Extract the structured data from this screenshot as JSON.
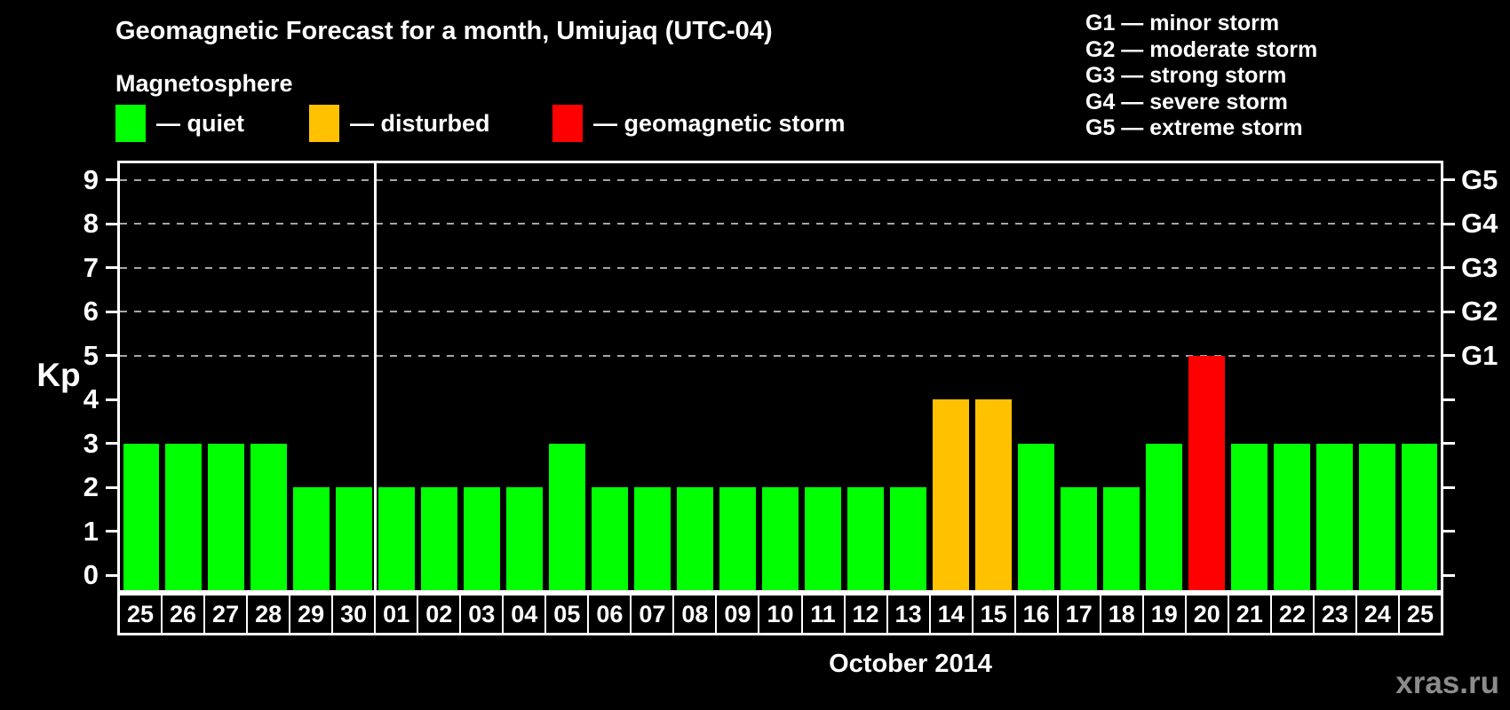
{
  "title": "Geomagnetic Forecast for a month, Umiujaq (UTC-04)",
  "legend": {
    "heading": "Magnetosphere",
    "items": [
      {
        "name": "quiet",
        "label": "— quiet",
        "color": "#00ff00"
      },
      {
        "name": "disturbed",
        "label": "— disturbed",
        "color": "#ffc100"
      },
      {
        "name": "storm",
        "label": "— geomagnetic storm",
        "color": "#ff0000"
      }
    ]
  },
  "storm_scale_legend": [
    "G1 — minor storm",
    "G2 — moderate storm",
    "G3 — strong storm",
    "G4 — severe storm",
    "G5 — extreme storm"
  ],
  "watermark": "xras.ru",
  "chart_data": {
    "type": "bar",
    "title": "Geomagnetic Forecast for a month, Umiujaq (UTC-04)",
    "xlabel": "October 2014",
    "ylabel": "Kp",
    "ylim": [
      0,
      9
    ],
    "yticks": [
      0,
      1,
      2,
      3,
      4,
      5,
      6,
      7,
      8,
      9
    ],
    "gridlines_at_kp": [
      5,
      6,
      7,
      8,
      9
    ],
    "grid": "dashed horizontal at storm levels only",
    "legend_position": "top",
    "right_axis": [
      {
        "kp": 5,
        "label": "G1"
      },
      {
        "kp": 6,
        "label": "G2"
      },
      {
        "kp": 7,
        "label": "G3"
      },
      {
        "kp": 8,
        "label": "G4"
      },
      {
        "kp": 9,
        "label": "G5"
      }
    ],
    "month_separator_after_bar": 6,
    "level_colors": {
      "quiet": "#00ff00",
      "disturbed": "#ffc100",
      "storm": "#ff0000"
    },
    "bars": [
      {
        "day": "25",
        "kp": 3,
        "level": "quiet"
      },
      {
        "day": "26",
        "kp": 3,
        "level": "quiet"
      },
      {
        "day": "27",
        "kp": 3,
        "level": "quiet"
      },
      {
        "day": "28",
        "kp": 3,
        "level": "quiet"
      },
      {
        "day": "29",
        "kp": 2,
        "level": "quiet"
      },
      {
        "day": "30",
        "kp": 2,
        "level": "quiet"
      },
      {
        "day": "01",
        "kp": 2,
        "level": "quiet"
      },
      {
        "day": "02",
        "kp": 2,
        "level": "quiet"
      },
      {
        "day": "03",
        "kp": 2,
        "level": "quiet"
      },
      {
        "day": "04",
        "kp": 2,
        "level": "quiet"
      },
      {
        "day": "05",
        "kp": 3,
        "level": "quiet"
      },
      {
        "day": "06",
        "kp": 2,
        "level": "quiet"
      },
      {
        "day": "07",
        "kp": 2,
        "level": "quiet"
      },
      {
        "day": "08",
        "kp": 2,
        "level": "quiet"
      },
      {
        "day": "09",
        "kp": 2,
        "level": "quiet"
      },
      {
        "day": "10",
        "kp": 2,
        "level": "quiet"
      },
      {
        "day": "11",
        "kp": 2,
        "level": "quiet"
      },
      {
        "day": "12",
        "kp": 2,
        "level": "quiet"
      },
      {
        "day": "13",
        "kp": 2,
        "level": "quiet"
      },
      {
        "day": "14",
        "kp": 4,
        "level": "disturbed"
      },
      {
        "day": "15",
        "kp": 4,
        "level": "disturbed"
      },
      {
        "day": "16",
        "kp": 3,
        "level": "quiet"
      },
      {
        "day": "17",
        "kp": 2,
        "level": "quiet"
      },
      {
        "day": "18",
        "kp": 2,
        "level": "quiet"
      },
      {
        "day": "19",
        "kp": 3,
        "level": "quiet"
      },
      {
        "day": "20",
        "kp": 5,
        "level": "storm"
      },
      {
        "day": "21",
        "kp": 3,
        "level": "quiet"
      },
      {
        "day": "22",
        "kp": 3,
        "level": "quiet"
      },
      {
        "day": "23",
        "kp": 3,
        "level": "quiet"
      },
      {
        "day": "24",
        "kp": 3,
        "level": "quiet"
      },
      {
        "day": "25",
        "kp": 3,
        "level": "quiet"
      }
    ]
  }
}
